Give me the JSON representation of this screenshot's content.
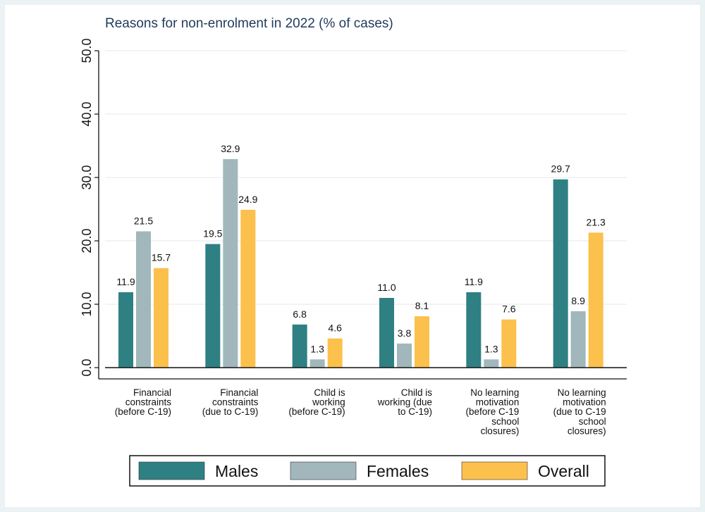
{
  "chart_data": {
    "type": "bar",
    "title": "Reasons for non-enrolment in 2022 (% of cases)",
    "xlabel": "",
    "ylabel": "",
    "ylim": [
      0,
      50
    ],
    "yticks": [
      "0.0",
      "10.0",
      "20.0",
      "30.0",
      "40.0",
      "50.0"
    ],
    "grid": true,
    "legend_position": "bottom",
    "categories": [
      [
        "Financial",
        "constraints",
        "(before C-19)"
      ],
      [
        "Financial",
        "constraints",
        "(due to C-19)"
      ],
      [
        "Child is",
        "working",
        "(before C-19)"
      ],
      [
        "Child is",
        "working (due",
        "to C-19)"
      ],
      [
        "No learning",
        "motivation",
        "(before C-19",
        "school",
        "closures)"
      ],
      [
        "No learning",
        "motivation",
        "(due to C-19",
        "school",
        "closures)"
      ]
    ],
    "series": [
      {
        "name": "Males",
        "color": "#2e8083",
        "values": [
          11.9,
          19.5,
          6.8,
          11.0,
          11.9,
          29.7
        ],
        "labels": [
          "11.9",
          "19.5",
          "6.8",
          "11.0",
          "11.9",
          "29.7"
        ]
      },
      {
        "name": "Females",
        "color": "#a1b7bb",
        "values": [
          21.5,
          32.9,
          1.3,
          3.8,
          1.3,
          8.9
        ],
        "labels": [
          "21.5",
          "32.9",
          "1.3",
          "3.8",
          "1.3",
          "8.9"
        ]
      },
      {
        "name": "Overall",
        "color": "#fcc04c",
        "values": [
          15.7,
          24.9,
          4.6,
          8.1,
          7.6,
          21.3
        ],
        "labels": [
          "15.7",
          "24.9",
          "4.6",
          "8.1",
          "7.6",
          "21.3"
        ]
      }
    ]
  }
}
